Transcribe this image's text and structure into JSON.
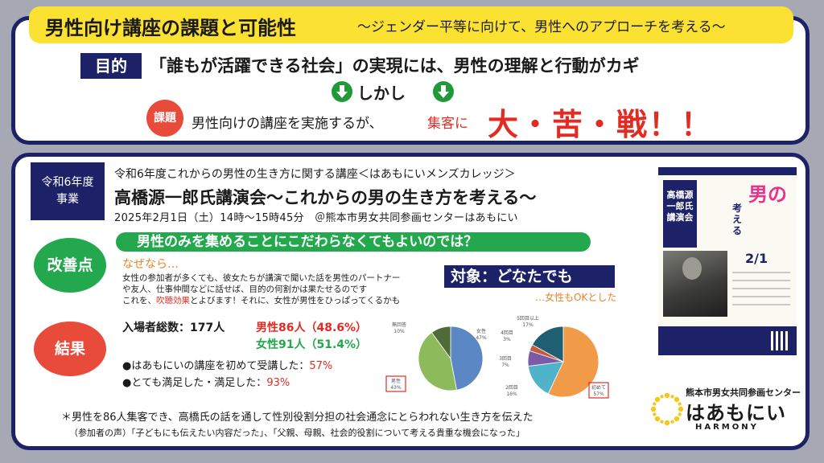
{
  "header": {
    "title": "男性向け講座の課題と可能性",
    "subtitle": "〜ジェンダー平等に向けて、男性へのアプローチを考える〜"
  },
  "purpose": {
    "tag": "目的",
    "text": "「誰もが活躍できる社会」の実現には、男性の理解と行動がカギ"
  },
  "however": "しかし",
  "issue": {
    "tag": "課題",
    "text": "男性向けの講座を実施するが、",
    "text_red": "集客に",
    "emphasis": "大・苦・戦！！"
  },
  "lecture": {
    "year_line1": "令和6年度",
    "year_line2": "事業",
    "series": "令和6年度これからの男性の生き方に関する講座＜はあもにいメンズカレッジ＞",
    "title": "高橋源一郎氏講演会〜これからの男の生き方を考える〜",
    "date": "2025年2月1日（土）14時〜15時45分　＠熊本市男女共同参画センターはあもにい"
  },
  "improvement": {
    "tag": "改善点",
    "banner": "男性のみを集めることにこだわらなくてもよいのでは？",
    "because": "なぜなら…",
    "line1": "女性の参加者が多くても、彼女たちが講演で聞いた話を男性のパートナー",
    "line2": "や友人、仕事仲間などに話せば、目的の何割かは果たせるのです",
    "line3_a": "これを、",
    "line3_red": "吹聴効果",
    "line3_b": "とよびます！それに、女性が男性をひっぱってくるかも"
  },
  "target": {
    "label": "対象：どなたでも",
    "note": "…女性もOKとした"
  },
  "results": {
    "tag": "結果",
    "total": "入場者総数：177人",
    "male": "男性86人（48.6%）",
    "female": "女性91人（51.4%）",
    "bullet1_text": "●はあもにいの講座を初めて受講した：",
    "bullet1_pct": "57%",
    "bullet2_text": "●とても満足した・満足した：",
    "bullet2_pct": "93%"
  },
  "chart_data": [
    {
      "type": "pie",
      "labels": [
        "女性",
        "男性",
        "無回答"
      ],
      "values": [
        47,
        43,
        10
      ],
      "value_labels": [
        "47%",
        "43%",
        "10%"
      ],
      "colors": [
        "#5b88c4",
        "#8dba5b",
        "#4f6b3a"
      ]
    },
    {
      "type": "pie",
      "labels": [
        "初めて",
        "2回目",
        "3回目",
        "4回目",
        "5回目以上"
      ],
      "values": [
        57,
        16,
        7,
        3,
        17
      ],
      "value_labels": [
        "57%",
        "16%",
        "7%",
        "3%",
        "17%"
      ],
      "colors": [
        "#f19a47",
        "#4fb3c9",
        "#7c5aa8",
        "#c65b3c",
        "#1f5f73"
      ]
    }
  ],
  "summary": "＊男性を86人集客でき、高橋氏の話を通して性別役割分担の社会通念にとらわれない生き方を伝えた",
  "voice": "（参加者の声）「子どもにも伝えたい内容だった」、「父親、母親、社会的役割について考える貴重な機会になった」",
  "poster": {
    "label": "高橋源一郎氏講演会",
    "big": "男の",
    "sub": "考える",
    "date": "2/1"
  },
  "logo": {
    "center_name": "熊本市男女共同参画センター",
    "name": "はあもにい",
    "english": "HARMONY",
    "ring_color": "#f4c81a"
  }
}
